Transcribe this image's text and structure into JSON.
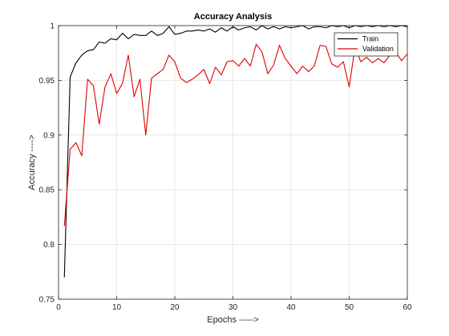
{
  "chart_data": {
    "type": "line",
    "title": "Accuracy Analysis",
    "xlabel": "Epochs ----->",
    "ylabel": "Accuracy ---->",
    "xlim": [
      0,
      60
    ],
    "ylim": [
      0.75,
      1
    ],
    "xticks": [
      0,
      10,
      20,
      30,
      40,
      50,
      60
    ],
    "xtick_labels": [
      "0",
      "10",
      "20",
      "30",
      "40",
      "50",
      "60"
    ],
    "yticks": [
      0.75,
      0.8,
      0.85,
      0.9,
      0.95,
      1
    ],
    "ytick_labels": [
      "0.75",
      "0.8",
      "0.85",
      "0.9",
      "0.95",
      "1"
    ],
    "grid": true,
    "legend_position": "top-right",
    "x": [
      1,
      2,
      3,
      4,
      5,
      6,
      7,
      8,
      9,
      10,
      11,
      12,
      13,
      14,
      15,
      16,
      17,
      18,
      19,
      20,
      21,
      22,
      23,
      24,
      25,
      26,
      27,
      28,
      29,
      30,
      31,
      32,
      33,
      34,
      35,
      36,
      37,
      38,
      39,
      40,
      41,
      42,
      43,
      44,
      45,
      46,
      47,
      48,
      49,
      50,
      51,
      52,
      53,
      54,
      55,
      56,
      57,
      58,
      59,
      60
    ],
    "series": [
      {
        "name": "Train",
        "color": "#000000",
        "values": [
          0.77,
          0.953,
          0.966,
          0.973,
          0.977,
          0.978,
          0.985,
          0.984,
          0.988,
          0.987,
          0.993,
          0.988,
          0.992,
          0.991,
          0.991,
          0.995,
          0.991,
          0.993,
          0.999,
          0.992,
          0.993,
          0.995,
          0.995,
          0.996,
          0.995,
          0.997,
          0.994,
          0.998,
          0.995,
          0.999,
          0.996,
          0.998,
          0.999,
          0.996,
          1.0,
          0.997,
          0.999,
          0.997,
          0.999,
          0.998,
          0.999,
          1.0,
          0.997,
          0.999,
          0.999,
          0.998,
          1.0,
          0.999,
          1.0,
          0.998,
          1.0,
          0.999,
          1.0,
          0.999,
          1.0,
          0.999,
          1.0,
          0.999,
          1.0,
          0.999
        ]
      },
      {
        "name": "Validation",
        "color": "#e00000",
        "values": [
          0.817,
          0.887,
          0.893,
          0.881,
          0.951,
          0.945,
          0.91,
          0.944,
          0.956,
          0.938,
          0.947,
          0.973,
          0.935,
          0.951,
          0.9,
          0.952,
          0.956,
          0.96,
          0.973,
          0.967,
          0.952,
          0.948,
          0.951,
          0.955,
          0.96,
          0.947,
          0.962,
          0.955,
          0.967,
          0.968,
          0.963,
          0.97,
          0.963,
          0.983,
          0.976,
          0.956,
          0.964,
          0.982,
          0.97,
          0.963,
          0.956,
          0.963,
          0.958,
          0.963,
          0.982,
          0.981,
          0.965,
          0.962,
          0.967,
          0.944,
          0.98,
          0.967,
          0.971,
          0.966,
          0.97,
          0.966,
          0.973,
          0.976,
          0.968,
          0.974
        ]
      }
    ]
  }
}
